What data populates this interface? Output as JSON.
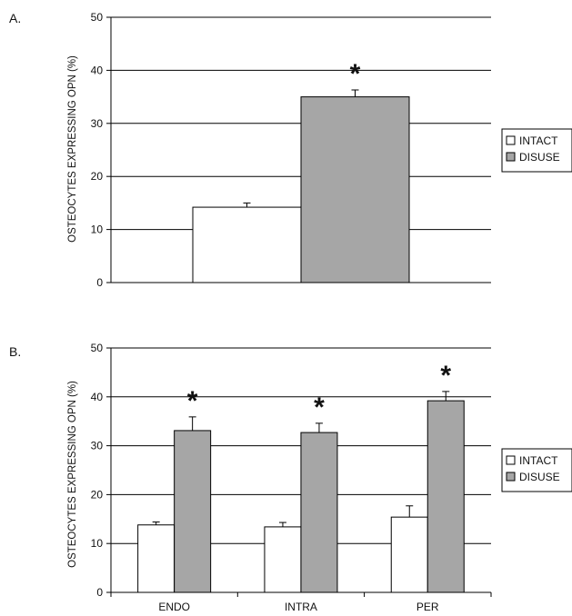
{
  "chart_data": [
    {
      "panel_label": "A.",
      "type": "bar",
      "categories": [
        ""
      ],
      "series": [
        {
          "name": "INTACT",
          "values": [
            14.2
          ],
          "errors": [
            0.8
          ],
          "color": "#ffffff"
        },
        {
          "name": "DISUSE",
          "values": [
            35.0
          ],
          "errors": [
            1.3
          ],
          "color": "#a6a6a6"
        }
      ],
      "significance": [
        "*"
      ],
      "ylabel": "OSTEOCYTES EXPRESSING OPN (%)",
      "ylim": [
        0,
        50
      ],
      "yticks": [
        "0",
        "10",
        "20",
        "30",
        "40",
        "50"
      ],
      "grid": true,
      "legend_position": "right"
    },
    {
      "panel_label": "B.",
      "type": "bar",
      "categories": [
        "ENDO",
        "INTRA",
        "PER"
      ],
      "series": [
        {
          "name": "INTACT",
          "values": [
            13.8,
            13.4,
            15.4
          ],
          "errors": [
            0.6,
            0.9,
            2.3
          ],
          "color": "#ffffff"
        },
        {
          "name": "DISUSE",
          "values": [
            33.1,
            32.7,
            39.2
          ],
          "errors": [
            2.8,
            1.9,
            1.9
          ],
          "color": "#a6a6a6"
        }
      ],
      "significance": [
        "*",
        "*",
        "*"
      ],
      "ylabel": "OSTEOCYTES EXPRESSING OPN (%)",
      "ylim": [
        0,
        50
      ],
      "yticks": [
        "0",
        "10",
        "20",
        "30",
        "40",
        "50"
      ],
      "grid": true,
      "legend_position": "right"
    }
  ]
}
